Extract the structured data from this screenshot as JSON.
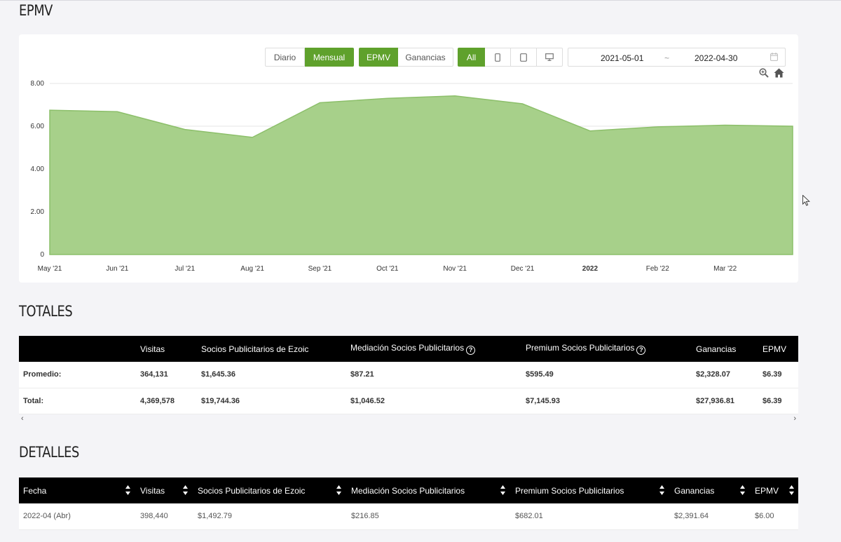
{
  "sections": {
    "epmv_title": "EPMV",
    "totales_title": "TOTALES",
    "detalles_title": "DETALLES"
  },
  "controls": {
    "period": [
      "Diario",
      "Mensual"
    ],
    "metric": [
      "EPMV",
      "Ganancias"
    ],
    "device_all": "All",
    "device_icons": [
      "tablet-icon",
      "mobile-icon",
      "desktop-icon"
    ],
    "date_start": "2021-05-01",
    "date_sep": "~",
    "date_end": "2022-04-30",
    "accent_color": "#5fa12c"
  },
  "chart_data": {
    "type": "area",
    "x": [
      "2021-05",
      "2021-06",
      "2021-07",
      "2021-08",
      "2021-09",
      "2021-10",
      "2021-11",
      "2021-12",
      "2022-01",
      "2022-02",
      "2022-03",
      "2022-04"
    ],
    "x_tick_labels": [
      "May '21",
      "Jun '21",
      "Jul '21",
      "Aug '21",
      "Sep '21",
      "Oct '21",
      "Nov '21",
      "Dec '21",
      "2022",
      "Feb '22",
      "Mar '22"
    ],
    "values": [
      6.75,
      6.68,
      5.85,
      5.48,
      7.1,
      7.3,
      7.42,
      7.05,
      5.78,
      5.97,
      6.05,
      6.0
    ],
    "y_ticks": [
      "8.00",
      "6.00",
      "4.00",
      "2.00",
      "0"
    ],
    "ylim": [
      0,
      8
    ],
    "fill_color": "#a7d08a",
    "line_color": "#8cbf6a",
    "grid": true
  },
  "totales": {
    "headers": [
      "",
      "Visitas",
      "Socios Publicitarios de Ezoic",
      "Mediación Socios Publicitarios",
      "Premium Socios Publicitarios",
      "Ganancias",
      "EPMV"
    ],
    "rows": [
      [
        "Promedio:",
        "364,131",
        "$1,645.36",
        "$87.21",
        "$595.49",
        "$2,328.07",
        "$6.39"
      ],
      [
        "Total:",
        "4,369,578",
        "$19,744.36",
        "$1,046.52",
        "$7,145.93",
        "$27,936.81",
        "$6.39"
      ]
    ]
  },
  "detalles": {
    "headers": [
      "Fecha",
      "Visitas",
      "Socios Publicitarios de Ezoic",
      "Mediación Socios Publicitarios",
      "Premium Socios Publicitarios",
      "Ganancias",
      "EPMV"
    ],
    "rows": [
      [
        "2022-04 (Abr)",
        "398,440",
        "$1,492.79",
        "$216.85",
        "$682.01",
        "$2,391.64",
        "$6.00"
      ]
    ]
  }
}
